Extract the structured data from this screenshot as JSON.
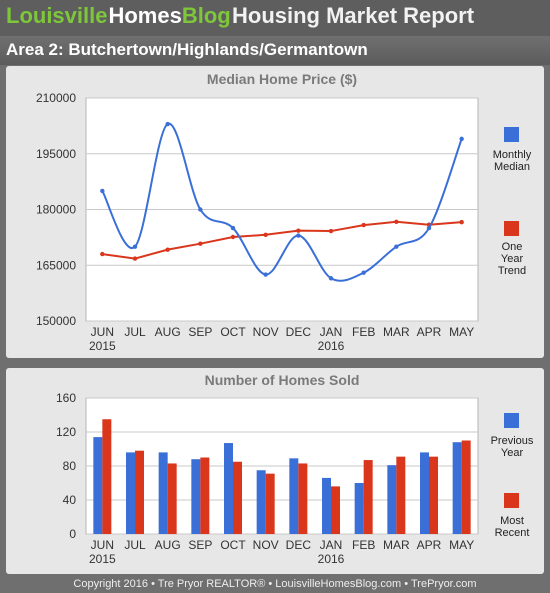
{
  "header": {
    "brand_part1": "Louisville",
    "brand_part2": "Homes",
    "brand_part3": "Blog",
    "title": "Housing Market Report"
  },
  "area_label": "Area 2: Butchertown/Highlands/Germantown",
  "footer_text": "Copyright 2016 • Tre Pryor REALTOR® • LouisvilleHomesBlog.com • TrePryor.com",
  "colors": {
    "blue": "#3a6fd8",
    "red": "#d9361c",
    "green": "#7ec63a"
  },
  "chart_data": [
    {
      "type": "line",
      "title": "Median Home Price ($)",
      "categories": [
        "JUN",
        "JUL",
        "AUG",
        "SEP",
        "OCT",
        "NOV",
        "DEC",
        "JAN",
        "FEB",
        "MAR",
        "APR",
        "MAY"
      ],
      "year_labels": [
        "2015",
        "",
        "",
        "",
        "",
        "",
        "",
        "2016",
        "",
        "",
        "",
        ""
      ],
      "ylim": [
        150000,
        210000
      ],
      "yticks": [
        150000,
        165000,
        180000,
        195000,
        210000
      ],
      "grid": true,
      "legend_position": "right",
      "series": [
        {
          "name": "Monthly Median",
          "color": "#3a6fd8",
          "values": [
            185000,
            170000,
            203000,
            180000,
            175000,
            162500,
            173000,
            161500,
            163000,
            170000,
            175000,
            199000
          ]
        },
        {
          "name": "One Year Trend",
          "color": "#d9361c",
          "values": [
            168000,
            166800,
            169200,
            170800,
            172600,
            173200,
            174300,
            174200,
            175800,
            176700,
            175900,
            176600
          ]
        }
      ]
    },
    {
      "type": "bar",
      "title": "Number of Homes Sold",
      "categories": [
        "JUN",
        "JUL",
        "AUG",
        "SEP",
        "OCT",
        "NOV",
        "DEC",
        "JAN",
        "FEB",
        "MAR",
        "APR",
        "MAY"
      ],
      "year_labels": [
        "2015",
        "",
        "",
        "",
        "",
        "",
        "",
        "2016",
        "",
        "",
        "",
        ""
      ],
      "ylim": [
        0,
        160
      ],
      "yticks": [
        0,
        40,
        80,
        120,
        160
      ],
      "grid": true,
      "legend_position": "right",
      "series": [
        {
          "name": "Previous Year",
          "color": "#3a6fd8",
          "values": [
            114,
            96,
            96,
            88,
            107,
            75,
            89,
            66,
            60,
            81,
            96,
            108
          ]
        },
        {
          "name": "Most Recent",
          "color": "#d9361c",
          "values": [
            135,
            98,
            83,
            90,
            85,
            71,
            83,
            56,
            87,
            91,
            91,
            110
          ]
        }
      ]
    }
  ]
}
